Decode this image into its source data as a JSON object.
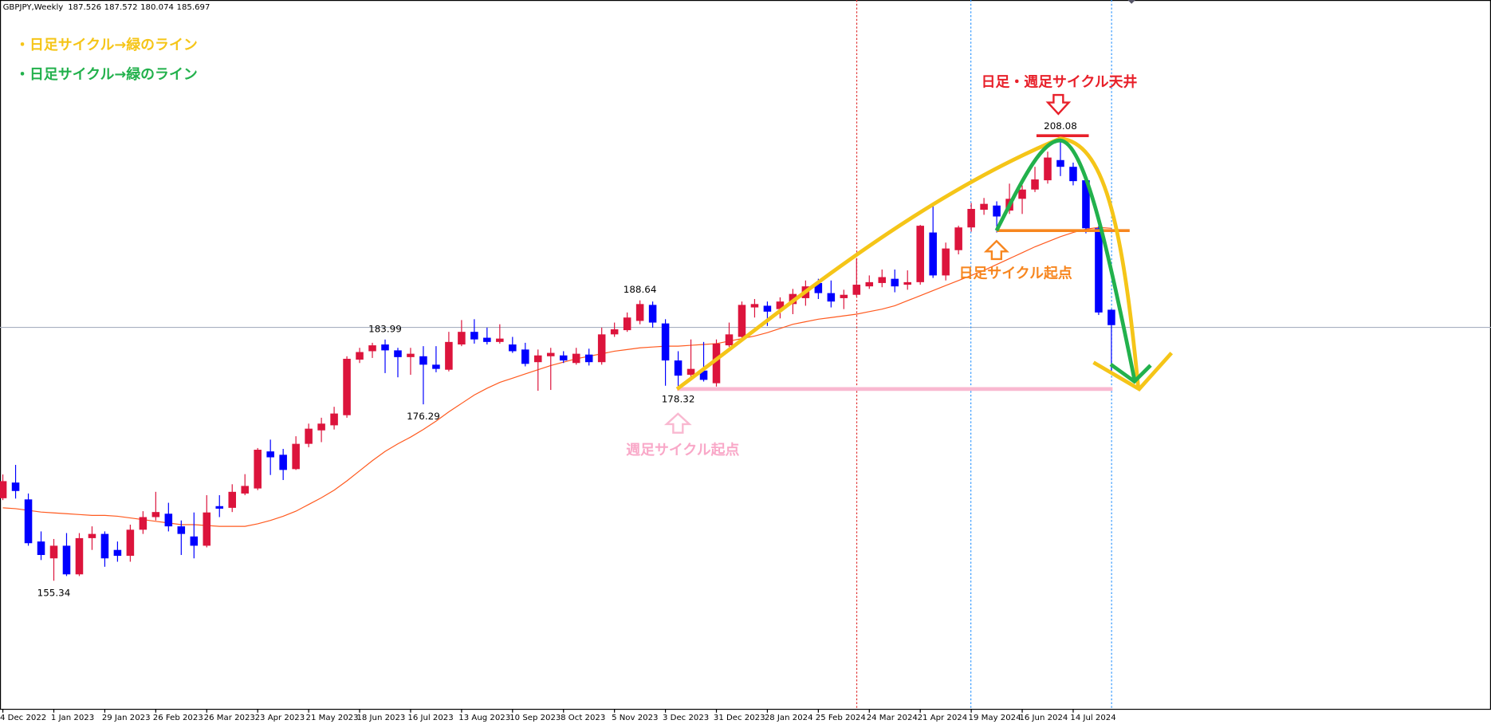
{
  "chart_data": {
    "type": "candlestick",
    "symbol": "GBPJPY,Weekly",
    "categories": [
      "4 Dec 2022",
      null,
      null,
      null,
      "1 Jan 2023",
      null,
      null,
      null,
      "29 Jan 2023",
      null,
      null,
      null,
      "26 Feb 2023",
      null,
      null,
      null,
      "26 Mar 2023",
      null,
      null,
      null,
      "23 Apr 2023",
      null,
      null,
      null,
      "21 May 2023",
      null,
      null,
      null,
      "18 Jun 2023",
      null,
      null,
      null,
      "16 Jul 2023",
      null,
      null,
      null,
      "13 Aug 2023",
      null,
      null,
      null,
      "10 Sep 2023",
      null,
      null,
      null,
      "8 Oct 2023",
      null,
      null,
      null,
      "5 Nov 2023",
      null,
      null,
      null,
      "3 Dec 2023",
      null,
      null,
      null,
      "31 Dec 2023",
      null,
      null,
      null,
      "28 Jan 2024",
      null,
      null,
      null,
      "25 Feb 2024",
      null,
      null,
      null,
      "24 Mar 2024",
      null,
      null,
      null,
      "21 Apr 2024",
      null,
      null,
      null,
      "19 May 2024",
      null,
      null,
      null,
      "16 Jun 2024",
      null,
      null,
      null,
      "14 Jul 2024",
      null,
      null,
      null
    ],
    "open": [
      165.14,
      167.0,
      165.0,
      160.0,
      158.0,
      159.5,
      156.1,
      160.4,
      160.9,
      159.0,
      158.3,
      161.4,
      162.9,
      163.3,
      161.8,
      160.6,
      159.5,
      164.2,
      164.0,
      165.7,
      166.3,
      170.7,
      170.3,
      168.6,
      171.6,
      173.2,
      173.8,
      175.0,
      181.6,
      182.6,
      183.4,
      182.7,
      181.9,
      182.0,
      181.0,
      180.4,
      183.4,
      184.9,
      184.2,
      183.7,
      183.4,
      182.8,
      181.3,
      182.0,
      182.1,
      181.2,
      182.2,
      181.3,
      184.6,
      185.1,
      186.2,
      188.1,
      185.9,
      181.5,
      179.8,
      180.3,
      178.8,
      183.3,
      184.3,
      187.8,
      188.0,
      187.6,
      188.2,
      188.9,
      190.7,
      189.5,
      188.9,
      189.3,
      190.3,
      190.7,
      191.2,
      190.5,
      190.8,
      196.7,
      191.6,
      194.6,
      197.3,
      199.4,
      199.9,
      199.3,
      200.7,
      201.8,
      202.9,
      205.3,
      204.5,
      202.9,
      197.2,
      187.526
    ],
    "high": [
      167.96,
      169.1,
      165.7,
      161.2,
      160.3,
      161.0,
      161.0,
      161.8,
      161.2,
      160.0,
      162.0,
      163.6,
      165.9,
      164.6,
      162.5,
      163.45,
      165.5,
      165.5,
      166.8,
      168.0,
      171.1,
      172.1,
      171.0,
      172.5,
      174.0,
      174.7,
      176.0,
      182.0,
      183.0,
      183.6,
      183.99,
      183.0,
      183.0,
      183.2,
      183.2,
      184.9,
      186.3,
      186.4,
      185.4,
      185.8,
      184.3,
      183.6,
      182.8,
      183.0,
      182.6,
      183.0,
      182.9,
      185.4,
      186.0,
      187.2,
      188.64,
      188.5,
      186.4,
      182.6,
      184.0,
      183.7,
      184.0,
      186.0,
      188.5,
      188.8,
      188.5,
      189.0,
      190.0,
      191.0,
      191.2,
      191.0,
      189.9,
      193.6,
      191.6,
      192.3,
      192.3,
      192.2,
      197.6,
      200.2,
      195.5,
      197.5,
      200.2,
      200.8,
      200.4,
      202.5,
      202.3,
      204.5,
      206.3,
      208.08,
      205.0,
      203.2,
      197.5,
      187.572
    ],
    "low": [
      164.92,
      165.1,
      159.5,
      157.8,
      155.34,
      155.9,
      155.9,
      159.0,
      157.0,
      157.6,
      157.6,
      160.9,
      162.5,
      161.2,
      158.4,
      158.0,
      159.3,
      162.9,
      163.5,
      165.5,
      166.1,
      167.9,
      167.3,
      168.5,
      171.2,
      171.8,
      173.3,
      174.7,
      181.2,
      181.8,
      180.0,
      179.5,
      179.8,
      176.29,
      180.1,
      180.2,
      183.2,
      183.5,
      183.4,
      183.5,
      182.4,
      180.8,
      177.9,
      178.0,
      181.2,
      181.0,
      180.9,
      181.0,
      184.3,
      184.9,
      185.8,
      185.4,
      178.5,
      178.32,
      179.2,
      179.0,
      178.4,
      183.1,
      184.2,
      186.6,
      185.6,
      186.5,
      187.0,
      188.0,
      188.8,
      187.8,
      187.6,
      189.1,
      190.0,
      190.2,
      189.6,
      189.9,
      190.5,
      191.3,
      191.0,
      194.1,
      196.8,
      198.8,
      196.7,
      198.9,
      198.9,
      201.5,
      202.5,
      203.4,
      202.3,
      196.6,
      186.9,
      180.074
    ],
    "close": [
      167.17,
      166.0,
      159.8,
      158.4,
      159.5,
      156.1,
      160.4,
      160.9,
      158.0,
      158.3,
      161.4,
      162.9,
      163.5,
      161.8,
      160.9,
      159.5,
      163.45,
      163.9,
      165.9,
      166.6,
      170.9,
      170.0,
      168.5,
      171.6,
      173.4,
      174.0,
      175.2,
      181.7,
      182.5,
      183.3,
      182.7,
      181.9,
      182.3,
      181.0,
      180.5,
      183.7,
      184.9,
      184.0,
      183.7,
      184.1,
      182.6,
      181.1,
      182.1,
      182.4,
      181.5,
      182.3,
      181.3,
      184.6,
      185.2,
      186.6,
      188.2,
      186.0,
      181.5,
      179.7,
      180.5,
      179.2,
      183.5,
      184.6,
      188.1,
      188.2,
      187.3,
      188.5,
      189.4,
      190.3,
      189.5,
      188.5,
      189.3,
      190.5,
      190.8,
      191.4,
      190.3,
      190.8,
      197.5,
      191.6,
      194.8,
      197.3,
      199.5,
      200.1,
      198.6,
      200.7,
      201.8,
      203.0,
      205.6,
      204.5,
      202.8,
      197.2,
      187.2,
      185.697
    ],
    "ma": {
      "color": "#ff5a1f",
      "values": [
        164.0,
        163.9,
        163.7,
        163.5,
        163.4,
        163.3,
        163.2,
        163.1,
        163.1,
        163.0,
        162.8,
        162.6,
        162.4,
        162.2,
        162.0,
        162.0,
        161.9,
        161.8,
        161.8,
        161.8,
        162.1,
        162.5,
        163.0,
        163.6,
        164.4,
        165.2,
        166.1,
        167.2,
        168.4,
        169.6,
        170.7,
        171.6,
        172.4,
        173.3,
        174.3,
        175.4,
        176.4,
        177.4,
        178.2,
        178.9,
        179.4,
        179.9,
        180.4,
        180.9,
        181.3,
        181.7,
        182.0,
        182.3,
        182.6,
        182.8,
        183.0,
        183.1,
        183.2,
        183.2,
        183.3,
        183.4,
        183.5,
        183.8,
        184.1,
        184.4,
        184.8,
        185.3,
        185.8,
        186.1,
        186.4,
        186.6,
        186.8,
        187.0,
        187.3,
        187.6,
        188.0,
        188.6,
        189.2,
        189.8,
        190.4,
        191.0,
        191.6,
        192.2,
        192.9,
        193.6,
        194.3,
        195.0,
        195.6,
        196.2,
        196.7,
        197.1,
        197.3,
        197.2
      ]
    },
    "up_color": "#dc143c",
    "down_color": "#0000ff",
    "ylim": [
      140.13,
      224.31
    ],
    "annotations": [
      {
        "text": "・日足サイクル→緑のライン",
        "color": "#f5c518"
      },
      {
        "text": "・日足サイクル→緑のライン",
        "color": "#22b14c"
      },
      {
        "text": "日足・週足サイクル天井",
        "color": "#e8202a"
      },
      {
        "text": "日足サイクル起点",
        "color": "#f7861f"
      },
      {
        "text": "週足サイクル起点",
        "color": "#f9a8c8"
      }
    ]
  }
}
